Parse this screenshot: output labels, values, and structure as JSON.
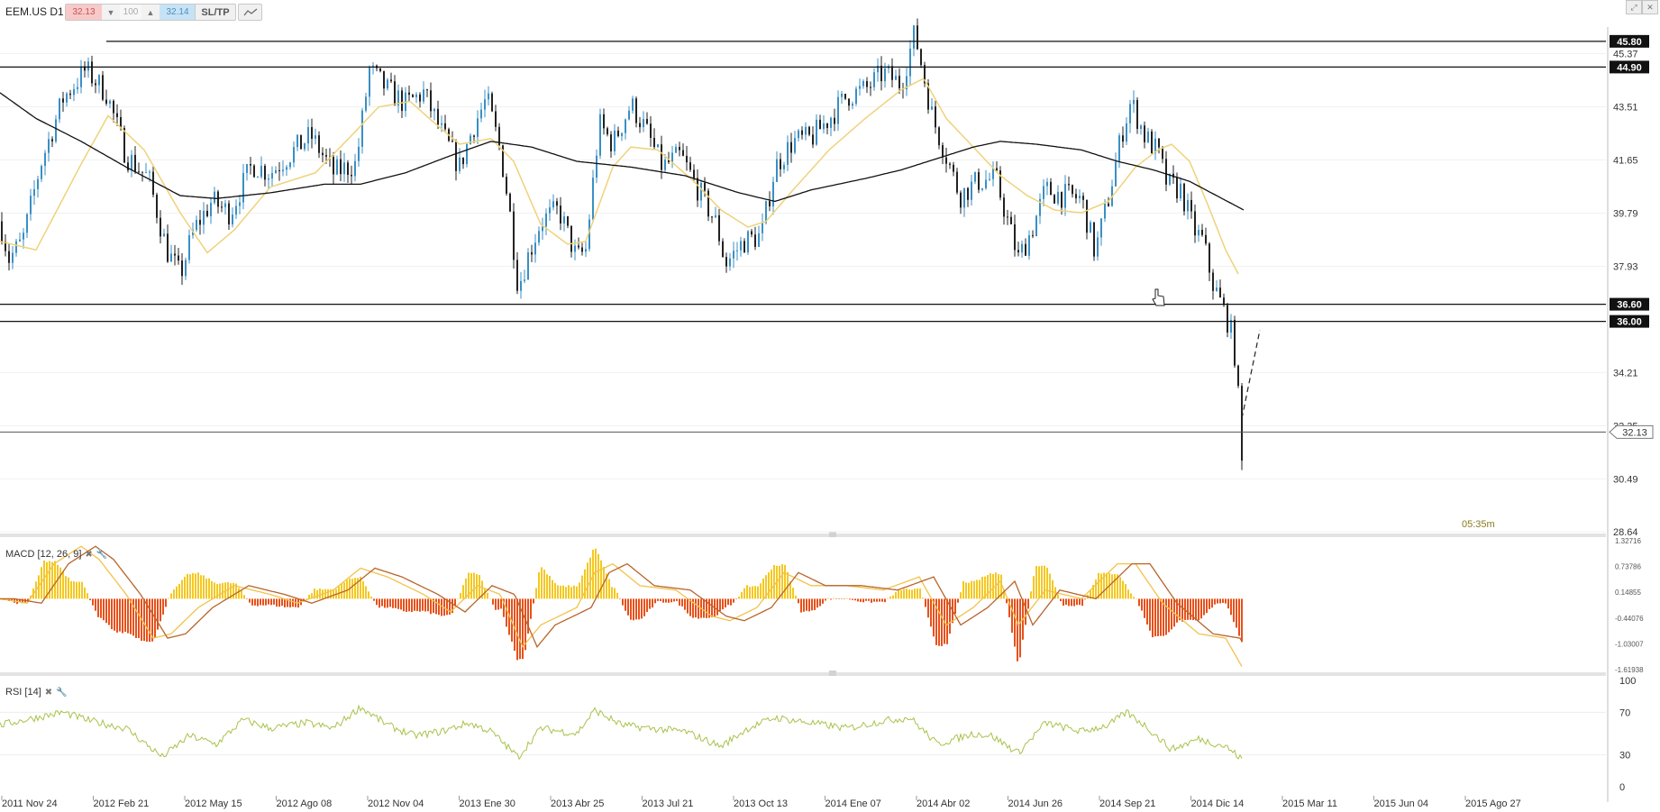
{
  "toolbar": {
    "symbol": "EEM.US D1",
    "sell_price": "32.13",
    "quantity": "100",
    "buy_price": "32.14",
    "sltp_label": "SL/TP",
    "down_arrow": "▼",
    "up_arrow": "▲"
  },
  "window_icons": [
    "maximize-icon",
    "close-icon"
  ],
  "price_axis": {
    "ticks": [
      "45.37",
      "43.51",
      "41.65",
      "39.79",
      "37.93",
      "34.21",
      "32.35",
      "30.49",
      "28.64"
    ],
    "range": [
      28.64,
      46.3
    ]
  },
  "levels": [
    {
      "label": "45.80",
      "value": 45.8
    },
    {
      "label": "44.90",
      "value": 44.9
    },
    {
      "label": "36.60",
      "value": 36.6
    },
    {
      "label": "36.00",
      "value": 36.0
    }
  ],
  "current_price": {
    "label": "32.13",
    "value": 32.13
  },
  "countdown": "05:35m",
  "macd": {
    "label": "MACD [12, 26, 9]",
    "ticks": [
      "1.32716",
      "0.73786",
      "0.14855",
      "-0.44076",
      "-1.03007",
      "-1.61938"
    ]
  },
  "rsi": {
    "label": "RSI [14]",
    "ticks": [
      "100",
      "70",
      "30",
      "0"
    ]
  },
  "time_axis": [
    "2011 Nov 24",
    "2012 Feb 21",
    "2012 May 15",
    "2012 Ago 08",
    "2012 Nov 04",
    "2013 Ene 30",
    "2013 Abr 25",
    "2013 Jul 21",
    "2013 Oct 13",
    "2014 Ene 07",
    "2014 Abr 02",
    "2014 Jun 26",
    "2014 Sep 21",
    "2014 Dic 14",
    "2015 Mar 11",
    "2015 Jun 04",
    "2015 Ago 27"
  ],
  "colors": {
    "candle_up": "#3a8fc4",
    "candle_down": "#222222",
    "ma_fast": "#efd27a",
    "ma_slow": "#111111",
    "macd_pos": "#f4c820",
    "macd_neg": "#e8501a",
    "macd_line": "#f2c24a",
    "signal_line": "#b8642a",
    "rsi_line": "#a8c24a",
    "countdown": "#8a7a20"
  },
  "chart_data": {
    "type": "candlestick",
    "title": "EEM.US D1",
    "price_anchors": [
      [
        0,
        39.5
      ],
      [
        10,
        38.2
      ],
      [
        25,
        38.8
      ],
      [
        45,
        41.5
      ],
      [
        70,
        43.8
      ],
      [
        95,
        44.8
      ],
      [
        118,
        44.0
      ],
      [
        140,
        41.8
      ],
      [
        165,
        41.0
      ],
      [
        185,
        38.5
      ],
      [
        200,
        37.6
      ],
      [
        215,
        39.2
      ],
      [
        235,
        40.2
      ],
      [
        255,
        39.8
      ],
      [
        280,
        41.5
      ],
      [
        300,
        41.2
      ],
      [
        320,
        41.8
      ],
      [
        345,
        42.5
      ],
      [
        370,
        41.2
      ],
      [
        395,
        41.5
      ],
      [
        410,
        44.8
      ],
      [
        430,
        44.1
      ],
      [
        450,
        43.6
      ],
      [
        470,
        44.0
      ],
      [
        490,
        42.6
      ],
      [
        510,
        41.4
      ],
      [
        525,
        42.8
      ],
      [
        540,
        43.8
      ],
      [
        555,
        42.0
      ],
      [
        565,
        40.0
      ],
      [
        575,
        37.2
      ],
      [
        585,
        38.2
      ],
      [
        600,
        39.5
      ],
      [
        620,
        39.9
      ],
      [
        640,
        38.2
      ],
      [
        650,
        38.5
      ],
      [
        665,
        42.9
      ],
      [
        680,
        42.2
      ],
      [
        700,
        43.6
      ],
      [
        715,
        42.8
      ],
      [
        735,
        41.4
      ],
      [
        755,
        41.8
      ],
      [
        775,
        40.6
      ],
      [
        795,
        39.4
      ],
      [
        805,
        38.0
      ],
      [
        825,
        38.8
      ],
      [
        845,
        39.0
      ],
      [
        860,
        41.4
      ],
      [
        880,
        42.3
      ],
      [
        900,
        42.4
      ],
      [
        920,
        43.1
      ],
      [
        940,
        43.9
      ],
      [
        960,
        44.1
      ],
      [
        980,
        44.7
      ],
      [
        1000,
        44.3
      ],
      [
        1015,
        46.1
      ],
      [
        1035,
        43.1
      ],
      [
        1050,
        41.8
      ],
      [
        1065,
        40.4
      ],
      [
        1085,
        40.9
      ],
      [
        1105,
        41.0
      ],
      [
        1120,
        39.3
      ],
      [
        1130,
        38.2
      ],
      [
        1145,
        39.2
      ],
      [
        1160,
        40.6
      ],
      [
        1180,
        40.4
      ],
      [
        1200,
        40.3
      ],
      [
        1215,
        38.4
      ],
      [
        1230,
        40.3
      ],
      [
        1245,
        42.6
      ],
      [
        1255,
        43.7
      ],
      [
        1270,
        42.5
      ],
      [
        1285,
        41.9
      ],
      [
        1295,
        40.8
      ],
      [
        1310,
        40.6
      ],
      [
        1325,
        39.2
      ],
      [
        1335,
        38.8
      ],
      [
        1345,
        37.4
      ],
      [
        1355,
        36.6
      ],
      [
        1365,
        35.8
      ],
      [
        1372,
        34.5
      ],
      [
        1378,
        31.0
      ],
      [
        1382,
        32.8
      ]
    ],
    "ma_fast_anchors": [
      [
        0,
        38.8
      ],
      [
        40,
        38.5
      ],
      [
        90,
        41.5
      ],
      [
        120,
        43.2
      ],
      [
        160,
        42.0
      ],
      [
        200,
        39.8
      ],
      [
        230,
        38.4
      ],
      [
        260,
        39.2
      ],
      [
        300,
        40.7
      ],
      [
        350,
        41.2
      ],
      [
        390,
        42.5
      ],
      [
        420,
        43.5
      ],
      [
        455,
        43.7
      ],
      [
        480,
        43.0
      ],
      [
        510,
        42.2
      ],
      [
        545,
        42.4
      ],
      [
        570,
        41.6
      ],
      [
        600,
        39.4
      ],
      [
        630,
        38.7
      ],
      [
        650,
        38.8
      ],
      [
        680,
        41.4
      ],
      [
        700,
        42.1
      ],
      [
        730,
        42.0
      ],
      [
        770,
        40.9
      ],
      [
        800,
        39.9
      ],
      [
        830,
        39.3
      ],
      [
        850,
        39.5
      ],
      [
        880,
        40.6
      ],
      [
        920,
        42.0
      ],
      [
        960,
        43.1
      ],
      [
        1000,
        44.1
      ],
      [
        1025,
        44.5
      ],
      [
        1050,
        43.1
      ],
      [
        1080,
        42.1
      ],
      [
        1110,
        41.1
      ],
      [
        1140,
        40.4
      ],
      [
        1170,
        39.9
      ],
      [
        1200,
        39.8
      ],
      [
        1230,
        40.2
      ],
      [
        1260,
        41.4
      ],
      [
        1285,
        42.0
      ],
      [
        1300,
        42.2
      ],
      [
        1320,
        41.6
      ],
      [
        1340,
        40.1
      ],
      [
        1360,
        38.5
      ],
      [
        1375,
        37.6
      ]
    ],
    "ma_slow_anchors": [
      [
        0,
        44.0
      ],
      [
        40,
        43.1
      ],
      [
        90,
        42.3
      ],
      [
        140,
        41.4
      ],
      [
        200,
        40.4
      ],
      [
        240,
        40.3
      ],
      [
        300,
        40.5
      ],
      [
        360,
        40.8
      ],
      [
        400,
        40.8
      ],
      [
        450,
        41.2
      ],
      [
        500,
        41.8
      ],
      [
        545,
        42.3
      ],
      [
        590,
        42.1
      ],
      [
        640,
        41.6
      ],
      [
        700,
        41.4
      ],
      [
        760,
        41.1
      ],
      [
        820,
        40.5
      ],
      [
        860,
        40.2
      ],
      [
        900,
        40.6
      ],
      [
        960,
        41.0
      ],
      [
        1000,
        41.3
      ],
      [
        1040,
        41.7
      ],
      [
        1080,
        42.1
      ],
      [
        1110,
        42.3
      ],
      [
        1150,
        42.2
      ],
      [
        1200,
        42.0
      ],
      [
        1240,
        41.6
      ],
      [
        1280,
        41.3
      ],
      [
        1320,
        40.9
      ],
      [
        1350,
        40.4
      ],
      [
        1380,
        39.9
      ]
    ],
    "macd_anchors": [
      [
        0,
        0.0
      ],
      [
        30,
        -0.1
      ],
      [
        60,
        0.8
      ],
      [
        90,
        1.2
      ],
      [
        110,
        0.9
      ],
      [
        140,
        0.1
      ],
      [
        170,
        -0.9
      ],
      [
        190,
        -0.8
      ],
      [
        220,
        -0.2
      ],
      [
        260,
        0.3
      ],
      [
        300,
        0.1
      ],
      [
        330,
        -0.1
      ],
      [
        370,
        0.2
      ],
      [
        400,
        0.7
      ],
      [
        430,
        0.5
      ],
      [
        470,
        0.1
      ],
      [
        500,
        -0.3
      ],
      [
        530,
        0.3
      ],
      [
        555,
        0.1
      ],
      [
        580,
        -1.1
      ],
      [
        600,
        -0.6
      ],
      [
        640,
        -0.2
      ],
      [
        660,
        0.6
      ],
      [
        680,
        0.8
      ],
      [
        710,
        0.3
      ],
      [
        750,
        0.2
      ],
      [
        790,
        -0.4
      ],
      [
        810,
        -0.5
      ],
      [
        840,
        -0.2
      ],
      [
        870,
        0.6
      ],
      [
        900,
        0.3
      ],
      [
        940,
        0.3
      ],
      [
        980,
        0.2
      ],
      [
        1020,
        0.5
      ],
      [
        1050,
        -0.6
      ],
      [
        1080,
        -0.2
      ],
      [
        1110,
        0.4
      ],
      [
        1130,
        -0.6
      ],
      [
        1160,
        0.2
      ],
      [
        1200,
        0.0
      ],
      [
        1240,
        0.8
      ],
      [
        1260,
        0.8
      ],
      [
        1290,
        -0.1
      ],
      [
        1330,
        -0.8
      ],
      [
        1360,
        -0.9
      ],
      [
        1378,
        -1.55
      ]
    ],
    "rsi_anchors": [
      [
        0,
        58
      ],
      [
        40,
        65
      ],
      [
        70,
        70
      ],
      [
        100,
        62
      ],
      [
        140,
        55
      ],
      [
        180,
        28
      ],
      [
        210,
        48
      ],
      [
        240,
        40
      ],
      [
        270,
        63
      ],
      [
        300,
        55
      ],
      [
        340,
        60
      ],
      [
        370,
        55
      ],
      [
        400,
        75
      ],
      [
        430,
        58
      ],
      [
        460,
        48
      ],
      [
        490,
        52
      ],
      [
        520,
        60
      ],
      [
        545,
        52
      ],
      [
        575,
        28
      ],
      [
        600,
        55
      ],
      [
        640,
        50
      ],
      [
        660,
        72
      ],
      [
        690,
        58
      ],
      [
        720,
        55
      ],
      [
        760,
        52
      ],
      [
        800,
        38
      ],
      [
        830,
        55
      ],
      [
        860,
        65
      ],
      [
        900,
        60
      ],
      [
        940,
        55
      ],
      [
        980,
        62
      ],
      [
        1010,
        65
      ],
      [
        1040,
        40
      ],
      [
        1080,
        50
      ],
      [
        1100,
        48
      ],
      [
        1130,
        32
      ],
      [
        1160,
        60
      ],
      [
        1200,
        52
      ],
      [
        1230,
        58
      ],
      [
        1250,
        70
      ],
      [
        1270,
        58
      ],
      [
        1300,
        35
      ],
      [
        1330,
        45
      ],
      [
        1360,
        38
      ],
      [
        1378,
        26
      ]
    ],
    "dashed_projection": [
      [
        1378,
        32.6
      ],
      [
        1398,
        35.7
      ]
    ],
    "price_range": [
      28.64,
      46.3
    ],
    "macd_range": [
      -1.61938,
      1.32716
    ],
    "rsi_range": [
      0,
      100
    ],
    "grid": "horizontal-only"
  }
}
